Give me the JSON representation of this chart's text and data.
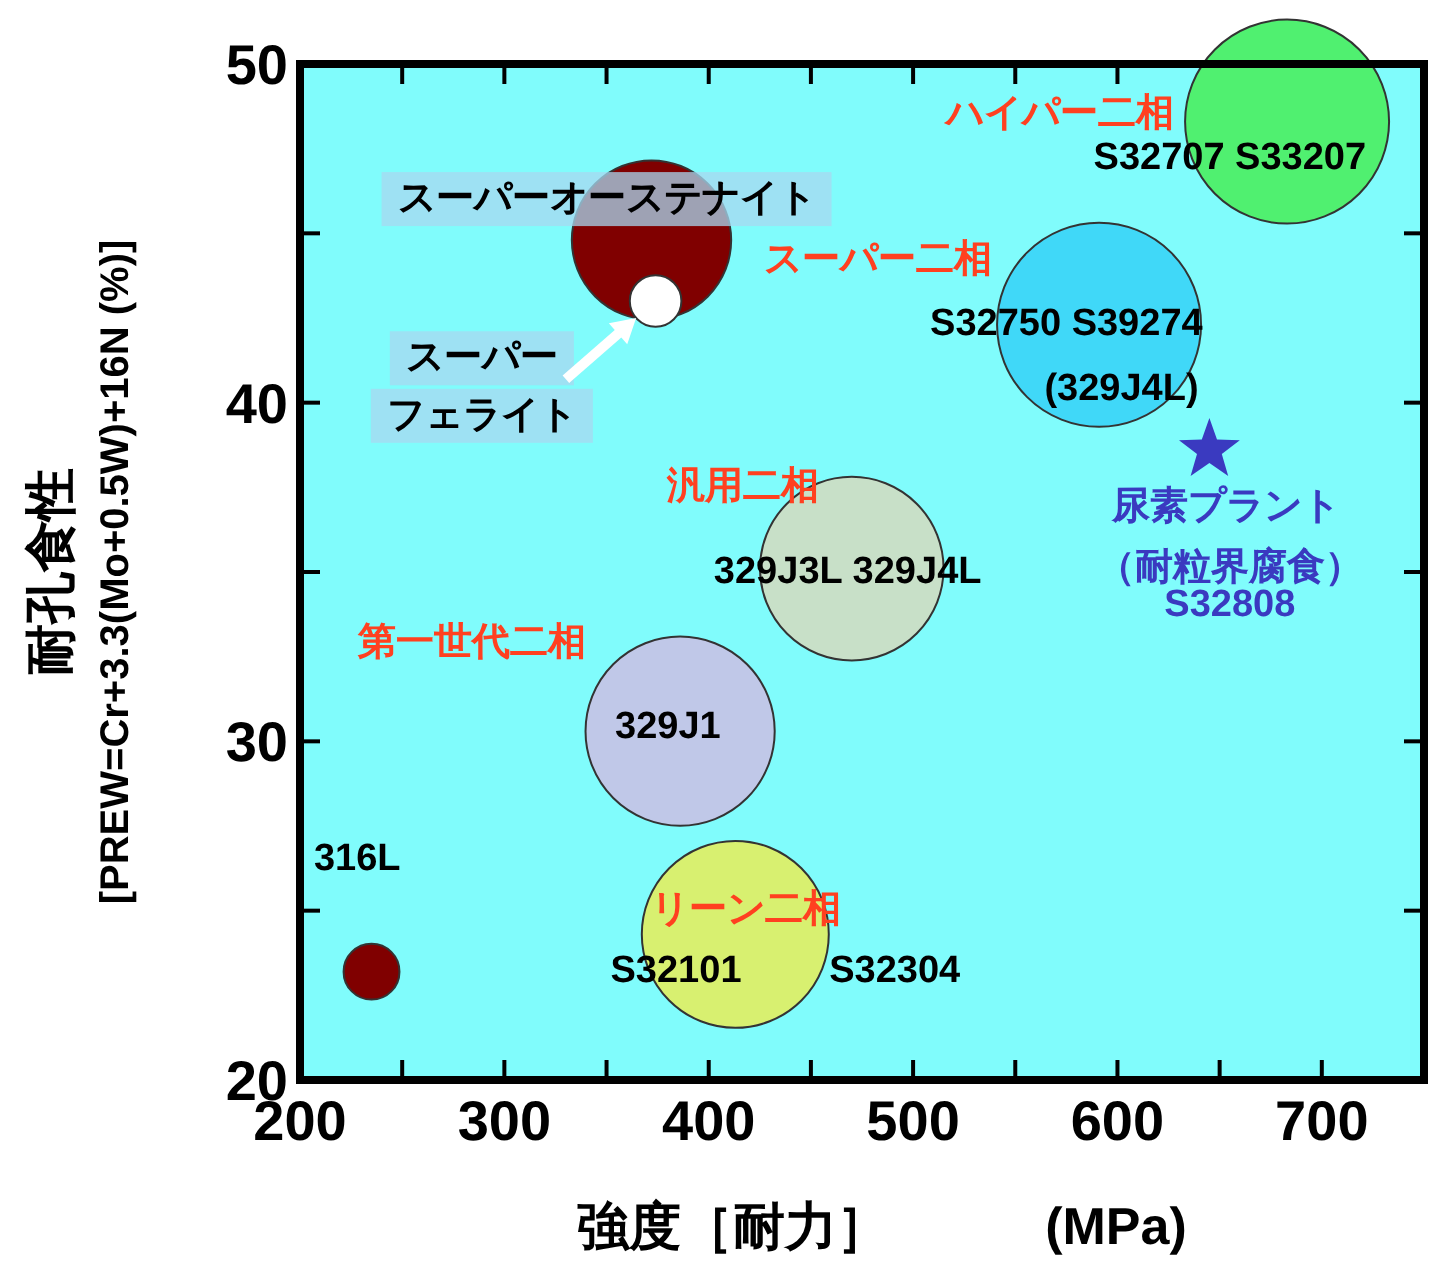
{
  "chart_data": {
    "type": "bubble",
    "xlabel": "強度［耐力］　　　(MPa)",
    "ylabel": "耐孔食性\n[PREW=Cr+3.3(Mo+0.5W)+16N (%)]",
    "xlim": [
      200,
      750
    ],
    "xticks": [
      200,
      300,
      400,
      500,
      600,
      700
    ],
    "ylim": [
      20,
      50
    ],
    "yticks": [
      20,
      30,
      40,
      50
    ],
    "series": [
      {
        "x": [
          235,
          372,
          374,
          386,
          413,
          470,
          591,
          683
        ],
        "values": [
          23.2,
          44.8,
          43.0,
          30.3,
          24.3,
          35.1,
          42.3,
          48.3
        ],
        "sizes": [
          0.075,
          0.61,
          0.064,
          0.86,
          0.84,
          0.81,
          1,
          1
        ],
        "colors": [
          "#800000",
          "#800000",
          "#ffffff",
          "#c0c8e8",
          "#d8f070",
          "#c8e0c8",
          "#40d8f8",
          "#50f070"
        ]
      },
      {
        "type": "scatter",
        "marker": "star",
        "color": "#3a3ac0",
        "x": [
          645
        ],
        "values": [
          38.6
        ]
      }
    ],
    "annotations": [
      "スーパーオーステナイト",
      "スーパー",
      "フェライト",
      "ハイパー二相",
      "S32707 S33207",
      "スーパー二相",
      "S32750 S39274",
      "(329J4L)",
      "汎用二相",
      "329J3L 329J4L",
      "尿素プラント",
      "（耐粒界腐食）",
      "S32808",
      "第一世代二相",
      "329J1",
      "316L",
      "リーン二相",
      "S32101",
      "S32304"
    ]
  }
}
